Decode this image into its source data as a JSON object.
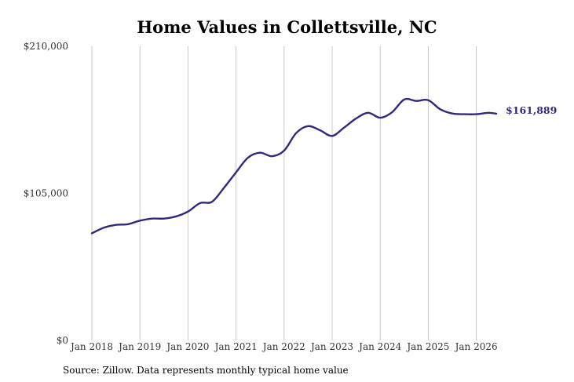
{
  "chart_data": {
    "type": "line",
    "title": "Home Values in Collettsville, NC",
    "source": "Source: Zillow. Data represents monthly typical home value",
    "ylim": [
      0,
      210000
    ],
    "y_ticks": [
      {
        "value": 0,
        "label": "$0"
      },
      {
        "value": 105000,
        "label": "$105,000"
      },
      {
        "value": 210000,
        "label": "$210,000"
      }
    ],
    "x_ticks": [
      "Jan 2018",
      "Jan 2019",
      "Jan 2020",
      "Jan 2021",
      "Jan 2022",
      "Jan 2023",
      "Jan 2024",
      "Jan 2025",
      "Jan 2026"
    ],
    "x_start": "Jan 2018",
    "grid": "vertical",
    "line_color": "#2e2a7c",
    "end_label": "$161,889",
    "series": [
      {
        "dates": [
          "2018-01",
          "2018-04",
          "2018-07",
          "2018-10",
          "2019-01",
          "2019-04",
          "2019-07",
          "2019-10",
          "2020-01",
          "2020-04",
          "2020-07",
          "2020-10",
          "2021-01",
          "2021-04",
          "2021-07",
          "2021-10",
          "2022-01",
          "2022-04",
          "2022-07",
          "2022-10",
          "2023-01",
          "2023-04",
          "2023-07",
          "2023-10",
          "2024-01",
          "2024-04",
          "2024-07",
          "2024-10",
          "2025-01",
          "2025-04",
          "2025-07",
          "2025-10",
          "2026-01",
          "2026-04",
          "2026-06"
        ],
        "values": [
          76500,
          80500,
          82500,
          83000,
          85500,
          87000,
          87000,
          88500,
          92000,
          98000,
          99000,
          109000,
          120000,
          130500,
          134000,
          131500,
          135500,
          148000,
          153000,
          150000,
          146000,
          152000,
          158500,
          162500,
          159000,
          163000,
          172000,
          171000,
          171500,
          165000,
          162000,
          161500,
          161500,
          162500,
          161889
        ]
      }
    ]
  }
}
